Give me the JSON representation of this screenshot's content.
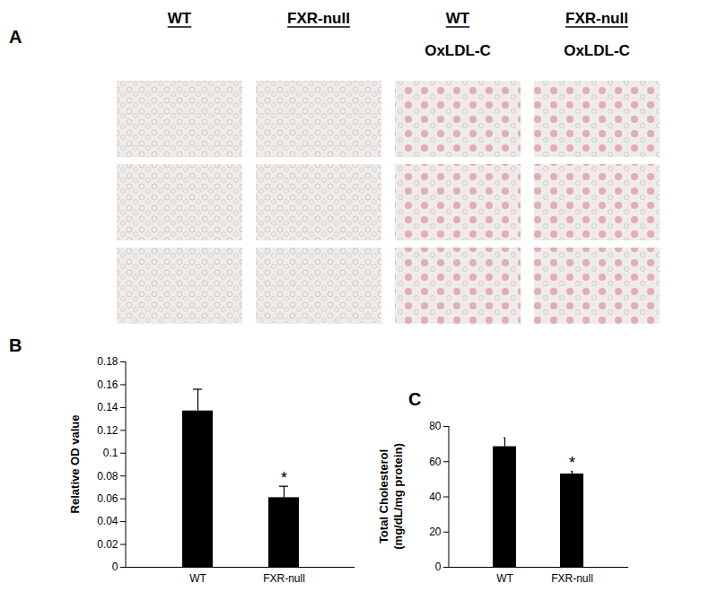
{
  "panel_a": {
    "panel": "A",
    "columns": [
      {
        "title": "WT"
      },
      {
        "title": "FXR-null"
      },
      {
        "title": "WT",
        "subtitle": "OxLDL-C"
      },
      {
        "title": "FXR-null",
        "subtitle": "OxLDL-C"
      }
    ]
  },
  "chart_data": [
    {
      "type": "bar",
      "panel": "B",
      "ylabel": "Relative OD value",
      "categories": [
        "WT",
        "FXR-null"
      ],
      "values": [
        0.137,
        0.061
      ],
      "errors": [
        0.019,
        0.01
      ],
      "significance": [
        null,
        "*"
      ],
      "color": "#000000",
      "ylim": [
        0,
        0.18
      ],
      "yticks": [
        0,
        0.02,
        0.04,
        0.06,
        0.08,
        0.1,
        0.12,
        0.14,
        0.16,
        0.18
      ]
    },
    {
      "type": "bar",
      "panel": "C",
      "ylabel": [
        "Total Cholesterol",
        "(mg/dL/mg protein)"
      ],
      "categories": [
        "WT",
        "FXR-null"
      ],
      "values": [
        68.5,
        53
      ],
      "errors": [
        5,
        1.5
      ],
      "significance": [
        null,
        "*"
      ],
      "color": "#000000",
      "ylim": [
        0,
        80
      ],
      "yticks": [
        0,
        20,
        40,
        60,
        80
      ]
    }
  ]
}
